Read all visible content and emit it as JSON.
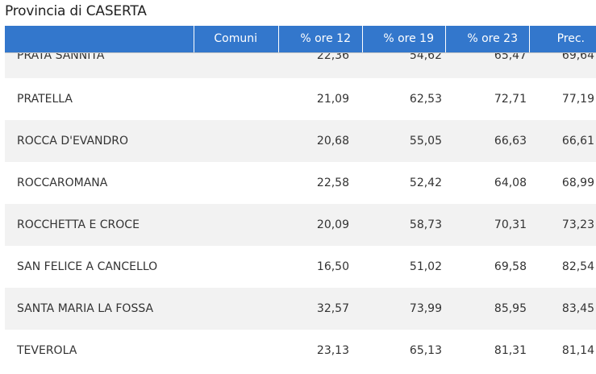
{
  "title": "Provincia di CASERTA",
  "header": {
    "blank": "",
    "comuni": "Comuni",
    "ore12": "% ore 12",
    "ore19": "% ore 19",
    "ore23": "% ore 23",
    "prec": "Prec."
  },
  "rows": [
    {
      "name": "PRATA SANNITA",
      "ore12": "22,36",
      "ore19": "54,62",
      "ore23": "65,47",
      "prec": "69,64"
    },
    {
      "name": "PRATELLA",
      "ore12": "21,09",
      "ore19": "62,53",
      "ore23": "72,71",
      "prec": "77,19"
    },
    {
      "name": "ROCCA D'EVANDRO",
      "ore12": "20,68",
      "ore19": "55,05",
      "ore23": "66,63",
      "prec": "66,61"
    },
    {
      "name": "ROCCAROMANA",
      "ore12": "22,58",
      "ore19": "52,42",
      "ore23": "64,08",
      "prec": "68,99"
    },
    {
      "name": "ROCCHETTA E CROCE",
      "ore12": "20,09",
      "ore19": "58,73",
      "ore23": "70,31",
      "prec": "73,23"
    },
    {
      "name": "SAN FELICE A CANCELLO",
      "ore12": "16,50",
      "ore19": "51,02",
      "ore23": "69,58",
      "prec": "82,54"
    },
    {
      "name": "SANTA MARIA LA FOSSA",
      "ore12": "32,57",
      "ore19": "73,99",
      "ore23": "85,95",
      "prec": "83,45"
    },
    {
      "name": "TEVEROLA",
      "ore12": "23,13",
      "ore19": "65,13",
      "ore23": "81,31",
      "prec": "81,14"
    }
  ]
}
